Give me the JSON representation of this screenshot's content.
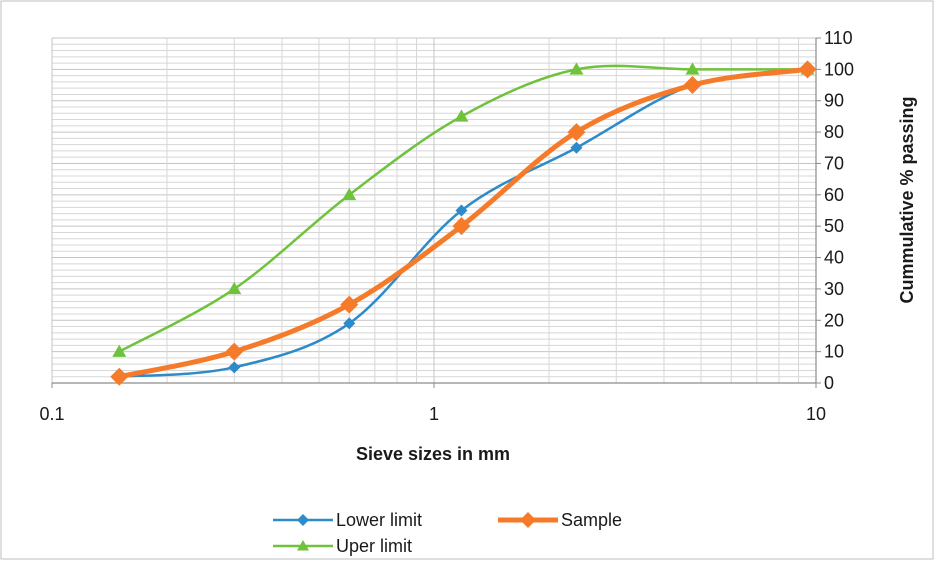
{
  "chart_data": {
    "type": "line",
    "xlabel": "Sieve sizes in mm",
    "ylabel": "Cummulative % passing",
    "x_scale": "log",
    "xlim": [
      0.1,
      10
    ],
    "ylim": [
      0,
      110
    ],
    "x_ticks": [
      "0.1",
      "1",
      "10"
    ],
    "y_ticks": [
      "0",
      "10",
      "20",
      "30",
      "40",
      "50",
      "60",
      "70",
      "80",
      "90",
      "100",
      "110"
    ],
    "grid": true,
    "legend_position": "bottom",
    "series": [
      {
        "name": "Lower limit",
        "color": "#2e8bc9",
        "marker": "diamond",
        "x": [
          0.15,
          0.3,
          0.6,
          1.18,
          2.36,
          4.75,
          9.5
        ],
        "y": [
          2,
          5,
          19,
          55,
          75,
          95,
          100
        ]
      },
      {
        "name": "Sample",
        "color": "#f57b2a",
        "marker": "diamond",
        "x": [
          0.15,
          0.3,
          0.6,
          1.18,
          2.36,
          4.75,
          9.5
        ],
        "y": [
          2,
          10,
          25,
          50,
          80,
          95,
          100
        ]
      },
      {
        "name": "Uper limit",
        "color": "#6fc23c",
        "marker": "triangle",
        "x": [
          0.15,
          0.3,
          0.6,
          1.18,
          2.36,
          4.75,
          9.5
        ],
        "y": [
          10,
          30,
          60,
          85,
          100,
          100,
          100
        ]
      }
    ]
  }
}
